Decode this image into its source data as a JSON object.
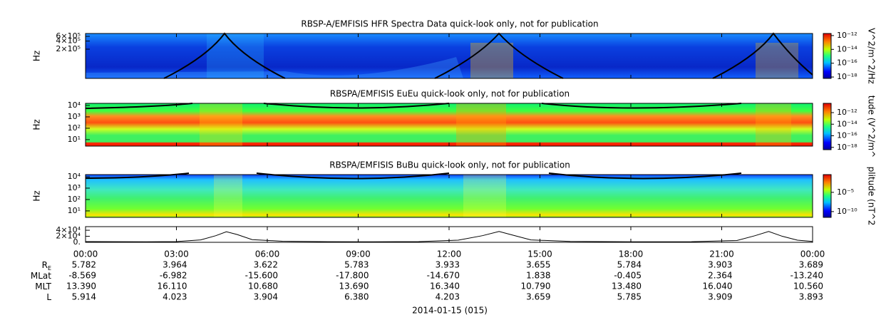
{
  "chart_data": [
    {
      "type": "spectrogram",
      "title": "RBSP-A/EMFISIS  HFR Spectra Data quick-look only, not for publication",
      "y_label": "Hz",
      "log_y": true,
      "ylim": [
        16400,
        766000
      ],
      "yticks": [
        {
          "value": 600000,
          "label": "6×10⁵"
        },
        {
          "value": 400000,
          "label": "4×10⁵"
        },
        {
          "value": 200000,
          "label": "2×10⁵"
        }
      ],
      "colorbar_label": "V^2/m^2/Hz",
      "clim": [
        -18.2,
        -11.7
      ],
      "colorbar_ticks": [
        {
          "value": -12,
          "label": "10⁻¹²"
        },
        {
          "value": -14,
          "label": "10⁻¹⁴"
        },
        {
          "value": -16,
          "label": "10⁻¹⁶"
        },
        {
          "value": -18,
          "label": "10⁻¹⁸"
        }
      ]
    },
    {
      "type": "spectrogram",
      "title": "RBSPA/EMFISIS  EuEu quick-look only, not for publication",
      "y_label": "Hz",
      "log_y": true,
      "ylim": [
        2.7,
        15400
      ],
      "yticks": [
        {
          "value": 10000,
          "label": "10⁴"
        },
        {
          "value": 1000,
          "label": "10³"
        },
        {
          "value": 100,
          "label": "10²"
        },
        {
          "value": 10,
          "label": "10¹"
        }
      ],
      "colorbar_label": "tude (V^2/m^",
      "clim": [
        -18.4,
        -10.4
      ],
      "colorbar_ticks": [
        {
          "value": -12,
          "label": "10⁻¹²"
        },
        {
          "value": -14,
          "label": "10⁻¹⁴"
        },
        {
          "value": -16,
          "label": "10⁻¹⁶"
        },
        {
          "value": -18,
          "label": "10⁻¹⁸"
        }
      ]
    },
    {
      "type": "spectrogram",
      "title": "RBSPA/EMFISIS  BuBu quick-look only, not for publication",
      "y_label": "Hz",
      "log_y": true,
      "ylim": [
        2.7,
        15400
      ],
      "yticks": [
        {
          "value": 10000,
          "label": "10⁴"
        },
        {
          "value": 1000,
          "label": "10³"
        },
        {
          "value": 100,
          "label": "10²"
        },
        {
          "value": 10,
          "label": "10¹"
        }
      ],
      "colorbar_label": "plitude (nT^2",
      "clim": [
        -11.5,
        -0.4
      ],
      "colorbar_ticks": [
        {
          "value": -5,
          "label": "10⁻⁵"
        },
        {
          "value": -10,
          "label": "10⁻¹⁰"
        }
      ]
    },
    {
      "type": "line",
      "color": "#000000",
      "log_y": false,
      "ylim": [
        0,
        52000
      ],
      "yticks": [
        {
          "value": 40000,
          "label": "4×10⁴"
        },
        {
          "value": 20000,
          "label": "2×10⁴"
        },
        {
          "value": 0,
          "label": "0."
        }
      ],
      "x": [
        0,
        1,
        2,
        3,
        3.8,
        4.3,
        4.65,
        5.0,
        5.5,
        6.5,
        8,
        9.5,
        11,
        12.3,
        13.1,
        13.65,
        14.1,
        14.7,
        16,
        18,
        20,
        21.5,
        22.1,
        22.55,
        23,
        23.5,
        24
      ],
      "values": [
        2500,
        2000,
        1800,
        2500,
        8000,
        22000,
        35000,
        26000,
        9000,
        3500,
        2000,
        1800,
        2500,
        7000,
        22000,
        36000,
        24000,
        8000,
        3000,
        1800,
        2000,
        6000,
        22000,
        36000,
        20000,
        7000,
        3000
      ]
    }
  ],
  "x_axis": {
    "xlim": [
      0,
      24
    ],
    "xticks": [
      {
        "value": 0,
        "label": "00:00"
      },
      {
        "value": 3,
        "label": "03:00"
      },
      {
        "value": 6,
        "label": "06:00"
      },
      {
        "value": 9,
        "label": "09:00"
      },
      {
        "value": 12,
        "label": "12:00"
      },
      {
        "value": 15,
        "label": "15:00"
      },
      {
        "value": 18,
        "label": "18:00"
      },
      {
        "value": 21,
        "label": "21:00"
      },
      {
        "value": 24,
        "label": "00:00"
      }
    ]
  },
  "ephemeris": [
    {
      "label": "R",
      "sub": "E",
      "values": [
        "5.782",
        "3.964",
        "3.622",
        "5.783",
        "3.933",
        "3.655",
        "5.784",
        "3.903",
        "3.689"
      ]
    },
    {
      "label": "MLat",
      "values": [
        "-8.569",
        "-6.982",
        "-15.600",
        "-17.800",
        "-14.670",
        "1.838",
        "-0.405",
        "2.364",
        "-13.240"
      ]
    },
    {
      "label": "MLT",
      "values": [
        "13.390",
        "16.110",
        "10.680",
        "13.690",
        "16.340",
        "10.790",
        "13.480",
        "16.040",
        "10.560"
      ]
    },
    {
      "label": "L",
      "values": [
        "5.914",
        "4.023",
        "3.904",
        "6.380",
        "4.203",
        "3.659",
        "5.785",
        "3.909",
        "3.893"
      ]
    }
  ],
  "footer": "2014-01-15 (015)"
}
